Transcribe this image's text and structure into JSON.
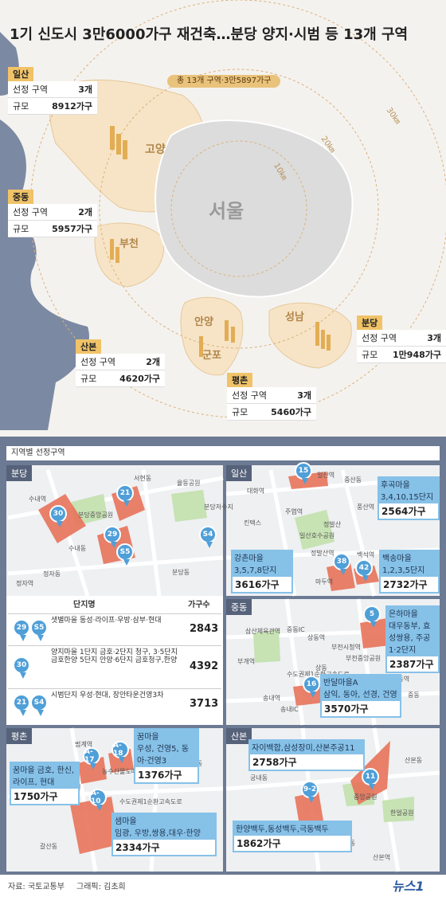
{
  "title": "1기 신도시 3만6000가구 재건축…분당 양지·시범 등 13개 구역",
  "summary": "총 13개 구역·3만5897가구",
  "map": {
    "regions": [
      "고양",
      "서울",
      "부천",
      "안양",
      "군포",
      "성남"
    ],
    "rings": [
      "10㎞",
      "20㎞",
      "30㎞"
    ]
  },
  "cities": [
    {
      "name": "일산",
      "rows": [
        [
          "선정 구역",
          "3개"
        ],
        [
          "규모",
          "8912가구"
        ]
      ]
    },
    {
      "name": "중동",
      "rows": [
        [
          "선정 구역",
          "2개"
        ],
        [
          "규모",
          "5957가구"
        ]
      ]
    },
    {
      "name": "산본",
      "rows": [
        [
          "선정 구역",
          "2개"
        ],
        [
          "규모",
          "4620가구"
        ]
      ]
    },
    {
      "name": "평촌",
      "rows": [
        [
          "선정 구역",
          "3개"
        ],
        [
          "규모",
          "5460가구"
        ]
      ]
    },
    {
      "name": "분당",
      "rows": [
        [
          "선정 구역",
          "3개"
        ],
        [
          "규모",
          "1만948가구"
        ]
      ]
    }
  ],
  "section_title": "지역별 선정구역",
  "panels": [
    {
      "name": "분당",
      "places": [
        "서현동",
        "수내역",
        "분당중앙공원",
        "율동공원",
        "분당저수지",
        "수내동",
        "정자동",
        "분당동",
        "정자역"
      ],
      "pins": [
        "30",
        "21",
        "29",
        "S5",
        "S4"
      ],
      "callouts": []
    },
    {
      "name": "일산",
      "places": [
        "일산역",
        "중산동",
        "대화역",
        "풍산역",
        "주엽역",
        "킨텍스",
        "일산호수공원",
        "정발산역",
        "정발산",
        "백석역",
        "마두역"
      ],
      "pins": [
        "15",
        "38",
        "42"
      ],
      "callouts": [
        {
          "title": "후곡마을",
          "detail": "3,4,10,15단지",
          "households": "2564가구"
        },
        {
          "title": "강촌마을",
          "detail": "3,5,7,8단지",
          "households": "3616가구"
        },
        {
          "title": "백송마을",
          "detail": "1,2,3,5단지",
          "households": "2732가구"
        }
      ]
    },
    {
      "name": "중동",
      "places": [
        "삼산체육관역",
        "중동IC",
        "상동역",
        "부천시청역",
        "부천중앙공원",
        "부개역",
        "상동",
        "수도권제1순환고속도로",
        "중동역",
        "송내역",
        "송내IC",
        "중동"
      ],
      "pins": [
        "5",
        "16"
      ],
      "callouts": [
        {
          "title": "은하마을",
          "detail": "대우동부, 효성쌍용, 주공 1·2단지",
          "households": "2387가구"
        },
        {
          "title": "반달마을A",
          "detail": "삼익, 동아, 선경, 건영",
          "households": "3570가구"
        }
      ]
    },
    {
      "name": "평촌",
      "places": [
        "범계역",
        "평촌역",
        "내손동",
        "지유공원",
        "갈산동",
        "수도권제1순환고속도로",
        "농수산물도매시장"
      ],
      "pins": [
        "A-17",
        "A-18",
        "A-10"
      ],
      "callouts": [
        {
          "title": "꿈마을 금호, 한신,",
          "detail": "라이프, 현대",
          "households": "1750가구"
        },
        {
          "title": "꿈마을",
          "detail": "우성, 건영5, 동아·건영3",
          "households": "1376가구"
        },
        {
          "title": "샘마을",
          "detail": "임광, 우방,쌍용,대우·한양",
          "households": "2334가구"
        }
      ]
    },
    {
      "name": "산본",
      "places": [
        "산본동",
        "궁내동",
        "중앙공원",
        "한얼공원",
        "광정동",
        "산본역"
      ],
      "pins": [
        "9-2",
        "11"
      ],
      "callouts": [
        {
          "title": "자이백합,삼성장미,산본주공11",
          "detail": "",
          "households": "2758가구"
        },
        {
          "title": "한양백두,동성백두,극동백두",
          "detail": "",
          "households": "1862가구"
        }
      ]
    }
  ],
  "bundang_table": {
    "headers": [
      "단지명",
      "가구수"
    ],
    "rows": [
      {
        "pins": [
          "29",
          "S5"
        ],
        "name": "샛별마을 동성·라이프·우방·삼부·현대",
        "households": 2843
      },
      {
        "pins": [
          "30"
        ],
        "name": "양지마을 1단지 금호·2단지 청구, 3·5단지 금호한양 5단지 안양·6단지 금호청구,한양",
        "households": 4392
      },
      {
        "pins": [
          "21",
          "S4"
        ],
        "name": "시범단지 우성·현대, 장안타운건영3차",
        "households": 3713
      }
    ]
  },
  "footer": {
    "source": "자료: 국토교통부",
    "graphic": "그래픽: 김초희",
    "logo": "뉴스1"
  }
}
